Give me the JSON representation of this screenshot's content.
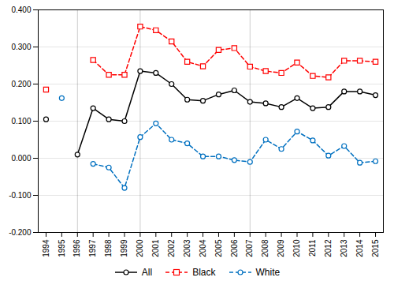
{
  "chart_data": {
    "type": "line",
    "x": [
      1994,
      1995,
      1996,
      1997,
      1998,
      1999,
      2000,
      2001,
      2002,
      2003,
      2004,
      2005,
      2006,
      2007,
      2008,
      2009,
      2010,
      2011,
      2012,
      2013,
      2014,
      2015
    ],
    "series": [
      {
        "name": "All",
        "color": "#000000",
        "marker": "circle",
        "line_style": "solid",
        "values": [
          0.105,
          null,
          0.01,
          0.135,
          0.105,
          0.1,
          0.235,
          0.23,
          0.2,
          0.158,
          0.155,
          0.172,
          0.183,
          0.152,
          0.148,
          0.138,
          0.162,
          0.135,
          0.138,
          0.18,
          0.18,
          0.17
        ]
      },
      {
        "name": "Black",
        "color": "#ff0000",
        "marker": "square",
        "line_style": "dashed",
        "values": [
          0.185,
          null,
          null,
          0.265,
          0.225,
          0.225,
          0.355,
          0.345,
          0.315,
          0.26,
          0.248,
          0.292,
          0.297,
          0.247,
          0.235,
          0.23,
          0.258,
          0.222,
          0.218,
          0.263,
          0.263,
          0.26
        ]
      },
      {
        "name": "White",
        "color": "#0070c0",
        "marker": "circle",
        "line_style": "dashed",
        "values": [
          null,
          0.162,
          null,
          -0.015,
          -0.025,
          -0.08,
          0.057,
          0.094,
          0.05,
          0.04,
          0.005,
          0.005,
          -0.005,
          -0.01,
          0.05,
          0.025,
          0.072,
          0.048,
          0.007,
          0.033,
          -0.012,
          -0.008
        ]
      }
    ],
    "xlim": [
      1993.5,
      2015.5
    ],
    "xticks": [
      1994,
      1995,
      1996,
      1997,
      1998,
      1999,
      2000,
      2001,
      2002,
      2003,
      2004,
      2005,
      2006,
      2007,
      2008,
      2009,
      2010,
      2011,
      2012,
      2013,
      2014,
      2015
    ],
    "ylim": [
      -0.2,
      0.4
    ],
    "yticks": [
      {
        "value": -0.2,
        "label": "-0.200"
      },
      {
        "value": -0.1,
        "label": "-0.100"
      },
      {
        "value": 0,
        "label": "0.000"
      },
      {
        "value": 0.1,
        "label": "0.100"
      },
      {
        "value": 0.2,
        "label": "0.200"
      },
      {
        "value": 0.3,
        "label": "0.300"
      },
      {
        "value": 0.4,
        "label": "0.400"
      }
    ],
    "vertical_lines": [
      1996,
      2000,
      2007
    ],
    "grid": true,
    "legend": "bottom"
  }
}
